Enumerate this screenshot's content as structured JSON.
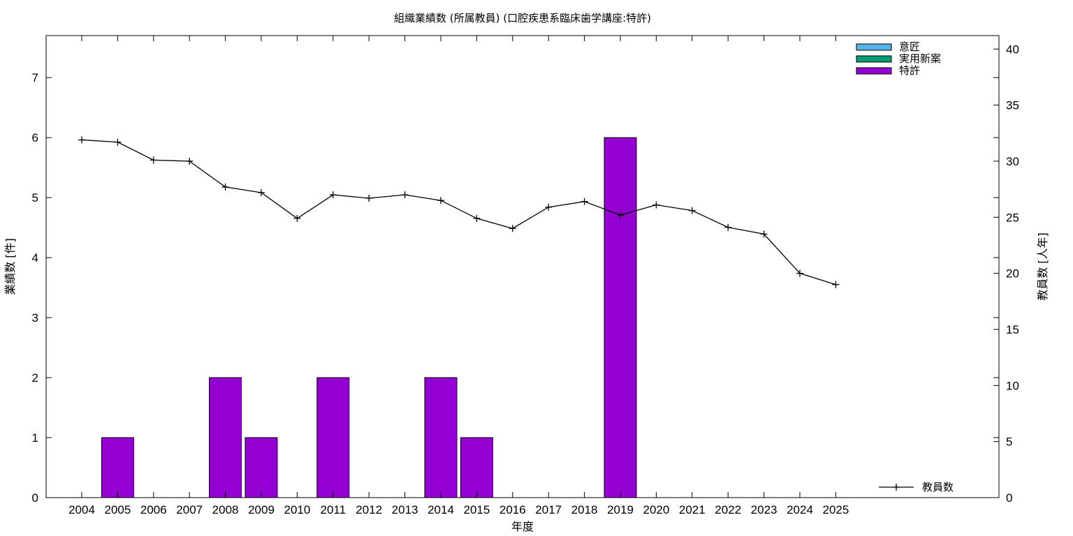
{
  "chart_data": {
    "type": "bar",
    "title": "組織業績数 (所属教員) (口腔疾患系臨床歯学講座:特許)",
    "xlabel": "年度",
    "ylabel": "業績数 [件]",
    "y2label": "教員数 [人年]",
    "categories": [
      "2004",
      "2005",
      "2006",
      "2007",
      "2008",
      "2009",
      "2010",
      "2011",
      "2012",
      "2013",
      "2014",
      "2015",
      "2016",
      "2017",
      "2018",
      "2019",
      "2020",
      "2021",
      "2022",
      "2023",
      "2024",
      "2025"
    ],
    "ylim": [
      0,
      7.7
    ],
    "yticks": [
      0,
      1,
      2,
      3,
      4,
      5,
      6,
      7
    ],
    "y2lim": [
      0,
      41.2
    ],
    "y2ticks": [
      0,
      5,
      10,
      15,
      20,
      25,
      30,
      35,
      40
    ],
    "legend_position": "top-right",
    "series": [
      {
        "name": "意匠",
        "type": "bar",
        "color": "#56b4e9",
        "values": [
          0,
          0,
          0,
          0,
          0,
          0,
          0,
          0,
          0,
          0,
          0,
          0,
          0,
          0,
          0,
          0,
          0,
          0,
          0,
          0,
          0,
          0
        ]
      },
      {
        "name": "実用新案",
        "type": "bar",
        "color": "#009e73",
        "values": [
          0,
          0,
          0,
          0,
          0,
          0,
          0,
          0,
          0,
          0,
          0,
          0,
          0,
          0,
          0,
          0,
          0,
          0,
          0,
          0,
          0,
          0
        ]
      },
      {
        "name": "特許",
        "type": "bar",
        "color": "#9400d3",
        "values": [
          0,
          1,
          0,
          0,
          2,
          1,
          0,
          2,
          0,
          0,
          2,
          1,
          0,
          0,
          0,
          6,
          0,
          0,
          0,
          0,
          0,
          0
        ]
      },
      {
        "name": "教員数",
        "type": "line",
        "axis": "y2",
        "color": "#000000",
        "legend_position": "bottom-right",
        "values": [
          31.9,
          31.7,
          30.1,
          30.0,
          27.7,
          27.2,
          24.9,
          27.0,
          26.7,
          27.0,
          26.5,
          24.9,
          24.0,
          25.9,
          26.4,
          25.2,
          26.1,
          25.6,
          24.1,
          23.5,
          20.0,
          19.0
        ]
      }
    ]
  }
}
